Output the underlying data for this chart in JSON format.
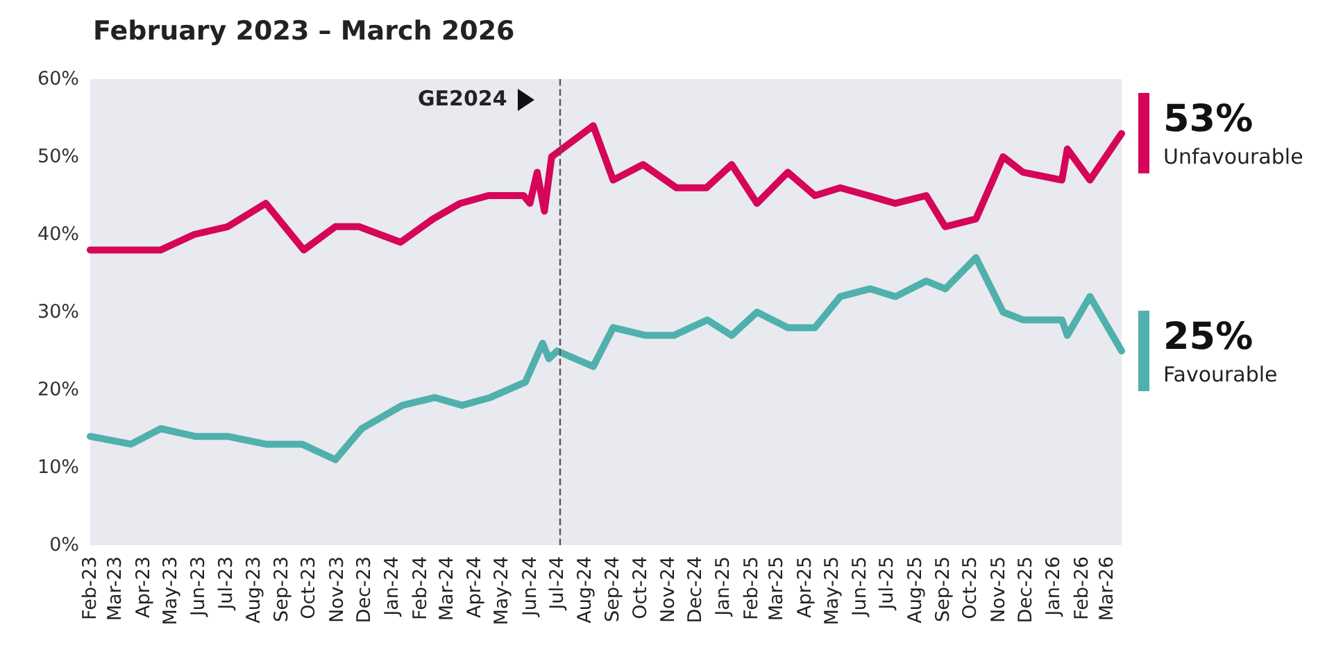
{
  "chart_data": {
    "type": "line",
    "title": "February 2023 – March 2026",
    "xlim": [
      "2023-02-01",
      "2026-03-17"
    ],
    "xticks": [
      {
        "value": "2023-02-01",
        "label": "Feb-23"
      },
      {
        "value": "2023-03-01",
        "label": "Mar-23"
      },
      {
        "value": "2023-04-01",
        "label": "Apr-23"
      },
      {
        "value": "2023-05-01",
        "label": "May-23"
      },
      {
        "value": "2023-06-01",
        "label": "Jun-23"
      },
      {
        "value": "2023-07-01",
        "label": "Jul-23"
      },
      {
        "value": "2023-08-01",
        "label": "Aug-23"
      },
      {
        "value": "2023-09-01",
        "label": "Sep-23"
      },
      {
        "value": "2023-10-01",
        "label": "Oct-23"
      },
      {
        "value": "2023-11-01",
        "label": "Nov-23"
      },
      {
        "value": "2023-12-01",
        "label": "Dec-23"
      },
      {
        "value": "2024-01-01",
        "label": "Jan-24"
      },
      {
        "value": "2024-02-01",
        "label": "Feb-24"
      },
      {
        "value": "2024-03-01",
        "label": "Mar-24"
      },
      {
        "value": "2024-04-01",
        "label": "Apr-24"
      },
      {
        "value": "2024-05-01",
        "label": "May-24"
      },
      {
        "value": "2024-06-01",
        "label": "Jun-24"
      },
      {
        "value": "2024-07-01",
        "label": "Jul-24"
      },
      {
        "value": "2024-08-01",
        "label": "Aug-24"
      },
      {
        "value": "2024-09-01",
        "label": "Sep-24"
      },
      {
        "value": "2024-10-01",
        "label": "Oct-24"
      },
      {
        "value": "2024-11-01",
        "label": "Nov-24"
      },
      {
        "value": "2024-12-01",
        "label": "Dec-24"
      },
      {
        "value": "2025-01-01",
        "label": "Jan-25"
      },
      {
        "value": "2025-02-01",
        "label": "Feb-25"
      },
      {
        "value": "2025-03-01",
        "label": "Mar-25"
      },
      {
        "value": "2025-04-01",
        "label": "Apr-25"
      },
      {
        "value": "2025-05-01",
        "label": "May-25"
      },
      {
        "value": "2025-06-01",
        "label": "Jun-25"
      },
      {
        "value": "2025-07-01",
        "label": "Jul-25"
      },
      {
        "value": "2025-08-01",
        "label": "Aug-25"
      },
      {
        "value": "2025-09-01",
        "label": "Sep-25"
      },
      {
        "value": "2025-10-01",
        "label": "Oct-25"
      },
      {
        "value": "2025-11-01",
        "label": "Nov-25"
      },
      {
        "value": "2025-12-01",
        "label": "Dec-25"
      },
      {
        "value": "2026-01-01",
        "label": "Jan-26"
      },
      {
        "value": "2026-02-01",
        "label": "Feb-26"
      },
      {
        "value": "2026-03-01",
        "label": "Mar-26"
      }
    ],
    "ylim": [
      0,
      60
    ],
    "yticks": [
      {
        "value": 0,
        "label": "0%"
      },
      {
        "value": 10,
        "label": "10%"
      },
      {
        "value": 20,
        "label": "20%"
      },
      {
        "value": 30,
        "label": "30%"
      },
      {
        "value": 40,
        "label": "40%"
      },
      {
        "value": 50,
        "label": "50%"
      },
      {
        "value": 60,
        "label": "60%"
      }
    ],
    "grid": false,
    "legend": false,
    "line_style": "solid",
    "ref_lines": [
      {
        "axis": "x",
        "value": "2024-07-04",
        "label": "GE2024",
        "line_style": "dashed",
        "color": "#555555"
      }
    ],
    "series": [
      {
        "name": "Unfavourable",
        "color": "#d5055a",
        "x": [
          "2023-02-01",
          "2023-04-20",
          "2023-05-27",
          "2023-07-03",
          "2023-08-14",
          "2023-09-25",
          "2023-10-30",
          "2023-11-25",
          "2024-01-10",
          "2024-02-15",
          "2024-03-16",
          "2024-04-16",
          "2024-05-25",
          "2024-06-01",
          "2024-06-09",
          "2024-06-17",
          "2024-06-25",
          "2024-08-10",
          "2024-09-01",
          "2024-10-04",
          "2024-11-10",
          "2024-12-13",
          "2025-01-10",
          "2025-02-07",
          "2025-03-13",
          "2025-04-12",
          "2025-05-10",
          "2025-06-10",
          "2025-07-10",
          "2025-08-13",
          "2025-09-03",
          "2025-10-07",
          "2025-11-06",
          "2025-11-28",
          "2026-01-10",
          "2026-01-16",
          "2026-02-10",
          "2026-03-17"
        ],
        "values": [
          38,
          38,
          40,
          41,
          44,
          38,
          41,
          41,
          39,
          42,
          44,
          45,
          45,
          44,
          48,
          43,
          50,
          54,
          47,
          49,
          46,
          46,
          49,
          44,
          48,
          45,
          46,
          45,
          44,
          45,
          41,
          42,
          50,
          48,
          47,
          51,
          47,
          53
        ],
        "value_labels": [
          null,
          null,
          null,
          null,
          null,
          null,
          null,
          null,
          null,
          null,
          null,
          null,
          null,
          null,
          null,
          null,
          null,
          null,
          null,
          null,
          null,
          null,
          null,
          null,
          null,
          null,
          null,
          null,
          null,
          null,
          null,
          null,
          null,
          null,
          null,
          null,
          null,
          "53%"
        ]
      },
      {
        "name": "Favourable",
        "color": "#4fb0ac",
        "x": [
          "2023-02-01",
          "2023-03-18",
          "2023-04-20",
          "2023-05-28",
          "2023-07-03",
          "2023-08-14",
          "2023-09-23",
          "2023-10-30",
          "2023-11-28",
          "2024-01-12",
          "2024-02-17",
          "2024-03-18",
          "2024-04-18",
          "2024-05-27",
          "2024-06-15",
          "2024-06-22",
          "2024-07-01",
          "2024-08-10",
          "2024-09-01",
          "2024-10-07",
          "2024-11-07",
          "2024-12-14",
          "2025-01-10",
          "2025-02-07",
          "2025-03-13",
          "2025-04-12",
          "2025-05-10",
          "2025-06-12",
          "2025-07-10",
          "2025-08-13",
          "2025-09-03",
          "2025-10-07",
          "2025-11-06",
          "2025-11-28",
          "2026-01-10",
          "2026-01-16",
          "2026-02-10",
          "2026-03-17"
        ],
        "values": [
          14,
          13,
          15,
          14,
          14,
          13,
          13,
          11,
          15,
          18,
          19,
          18,
          19,
          21,
          26,
          24,
          25,
          23,
          28,
          27,
          27,
          29,
          27,
          30,
          28,
          28,
          32,
          33,
          32,
          34,
          33,
          37,
          30,
          29,
          29,
          27,
          32,
          25
        ],
        "value_labels": [
          null,
          null,
          null,
          null,
          null,
          null,
          null,
          null,
          null,
          null,
          null,
          null,
          null,
          null,
          null,
          null,
          null,
          null,
          null,
          null,
          null,
          null,
          null,
          null,
          null,
          null,
          null,
          null,
          null,
          null,
          null,
          null,
          null,
          null,
          null,
          null,
          null,
          "25%"
        ]
      }
    ]
  }
}
